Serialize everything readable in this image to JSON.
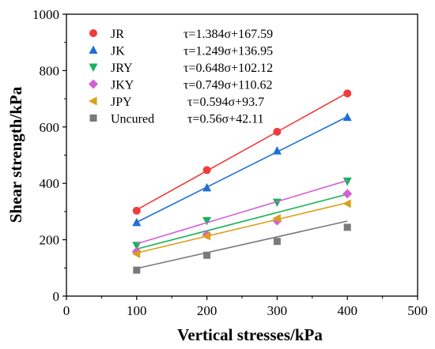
{
  "chart_data": {
    "type": "scatter",
    "xlabel": "Vertical stresses/kPa",
    "ylabel": "Shear strength/kPa",
    "xlim": [
      0,
      500
    ],
    "ylim": [
      0,
      1000
    ],
    "xticks": [
      0,
      100,
      200,
      300,
      400,
      500
    ],
    "yticks": [
      0,
      200,
      400,
      600,
      800,
      1000
    ],
    "grid": false,
    "legend_position": "top-left",
    "x": [
      100,
      200,
      300,
      400
    ],
    "series": [
      {
        "name": "JR",
        "equation": "τ=1.384σ+167.59",
        "marker": "circle",
        "color": "#f03c3c",
        "values": [
          303,
          447,
          583,
          719
        ],
        "fit": {
          "slope": 1.384,
          "intercept": 167.59
        }
      },
      {
        "name": "JK",
        "equation": "τ=1.249σ+136.95",
        "marker": "triangle-up",
        "color": "#1f6fd6",
        "values": [
          261,
          384,
          515,
          634
        ],
        "fit": {
          "slope": 1.249,
          "intercept": 136.95
        }
      },
      {
        "name": "JRY",
        "equation": "τ=0.648σ+102.12",
        "marker": "triangle-down",
        "color": "#18b35a",
        "values": [
          180,
          268,
          333,
          408
        ],
        "fit": {
          "slope": 0.648,
          "intercept": 102.12
        }
      },
      {
        "name": "JKY",
        "equation": "τ=0.749σ+110.62",
        "marker": "diamond",
        "color": "#d35fd8",
        "values": [
          158,
          218,
          267,
          363
        ],
        "fit": {
          "slope": 0.749,
          "intercept": 110.62
        }
      },
      {
        "name": "JPY",
        "equation": "τ=0.594σ+93.7",
        "marker": "triangle-left",
        "color": "#d9a01a",
        "values": [
          150,
          213,
          276,
          328
        ],
        "fit": {
          "slope": 0.594,
          "intercept": 93.7
        }
      },
      {
        "name": "Uncured",
        "equation": "τ=0.56σ+42.11",
        "marker": "square",
        "color": "#7a7a7a",
        "values": [
          92,
          145,
          194,
          244
        ],
        "fit": {
          "slope": 0.56,
          "intercept": 42.11
        }
      }
    ]
  }
}
